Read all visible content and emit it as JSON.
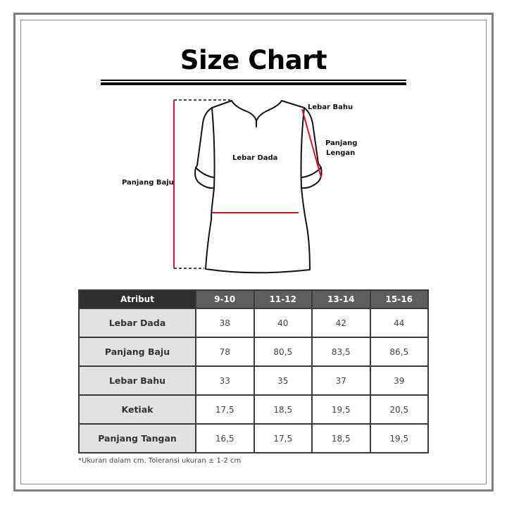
{
  "title": "Size Chart",
  "diagram": {
    "labels": {
      "lebar_bahu": "Lebar Bahu",
      "panjang_lengan_1": "Panjang",
      "panjang_lengan_2": "Lengan",
      "lebar_dada": "Lebar Dada",
      "panjang_baju": "Panjang Baju"
    },
    "measure_color": "#e0141e"
  },
  "table": {
    "headers": [
      "Atribut",
      "9-10",
      "11-12",
      "13-14",
      "15-16"
    ],
    "rows": [
      [
        "Lebar Dada",
        "38",
        "40",
        "42",
        "44"
      ],
      [
        "Panjang Baju",
        "78",
        "80,5",
        "83,5",
        "86,5"
      ],
      [
        "Lebar Bahu",
        "33",
        "35",
        "37",
        "39"
      ],
      [
        "Ketiak",
        "17,5",
        "18,5",
        "19,5",
        "20,5"
      ],
      [
        "Panjang Tangan",
        "16,5",
        "17,5",
        "18,5",
        "19,5"
      ]
    ]
  },
  "note": "*Ukuran dalam cm. Toleransi ukuran ± 1-2 cm"
}
